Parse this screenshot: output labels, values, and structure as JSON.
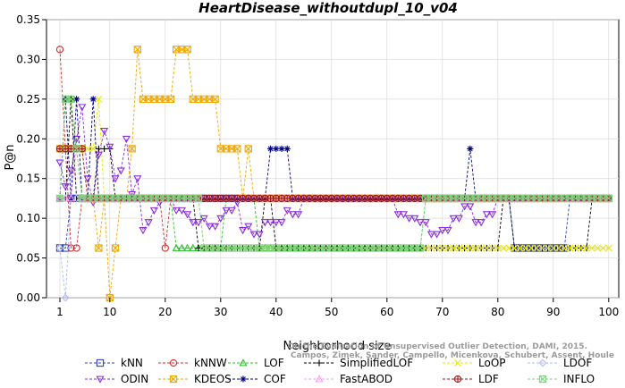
{
  "chart_data": {
    "type": "line",
    "title": "HeartDisease_withoutdupl_10_v04",
    "xlabel": "Neighborhood size",
    "ylabel": "P@n",
    "xlim": [
      1,
      100
    ],
    "ylim": [
      0,
      0.35
    ],
    "xticks": [
      1,
      10,
      20,
      30,
      40,
      50,
      60,
      70,
      80,
      90,
      100
    ],
    "yticks": [
      0.0,
      0.05,
      0.1,
      0.15,
      0.2,
      0.25,
      0.3,
      0.35
    ],
    "credit_lines": [
      "Campos, Zimek, Sander, Campello, Micenkova, Schubert, Assent, Houle",
      "On the Evaluation of Unsupervised Outlier Detection, DAMI, 2015."
    ],
    "legend_position": "bottom",
    "series": [
      {
        "name": "kNN",
        "color": "#2c3fbf",
        "marker": "square",
        "values": [
          [
            1,
            0.0625
          ],
          [
            2,
            0.0625
          ],
          [
            3,
            0.125
          ],
          [
            20,
            0.125
          ],
          [
            60,
            0.125
          ],
          [
            82,
            0.125
          ],
          [
            83,
            0.0625
          ],
          [
            92,
            0.0625
          ],
          [
            93,
            0.125
          ],
          [
            100,
            0.125
          ]
        ]
      },
      {
        "name": "kNNW",
        "color": "#d12c2c",
        "marker": "circle",
        "values": [
          [
            1,
            0.3125
          ],
          [
            2,
            0.1875
          ],
          [
            3,
            0.0625
          ],
          [
            4,
            0.0625
          ],
          [
            5,
            0.125
          ],
          [
            15,
            0.125
          ],
          [
            20,
            0.0625
          ],
          [
            21,
            0.125
          ],
          [
            40,
            0.125
          ],
          [
            41,
            0.125
          ],
          [
            60,
            0.125
          ],
          [
            100,
            0.125
          ]
        ]
      },
      {
        "name": "LOF",
        "color": "#22c422",
        "marker": "triangle",
        "values": [
          [
            1,
            0.125
          ],
          [
            2,
            0.25
          ],
          [
            3,
            0.25
          ],
          [
            4,
            0.1875
          ],
          [
            5,
            0.125
          ],
          [
            20,
            0.125
          ],
          [
            22,
            0.0625
          ],
          [
            30,
            0.0625
          ],
          [
            31,
            0.125
          ],
          [
            36,
            0.125
          ],
          [
            37,
            0.0625
          ],
          [
            66,
            0.0625
          ],
          [
            67,
            0.125
          ],
          [
            100,
            0.125
          ]
        ]
      },
      {
        "name": "SimplifiedLOF",
        "color": "#000000",
        "marker": "plus",
        "values": [
          [
            1,
            0.125
          ],
          [
            2,
            0.125
          ],
          [
            3,
            0.25
          ],
          [
            4,
            0.125
          ],
          [
            7,
            0.125
          ],
          [
            8,
            0.1875
          ],
          [
            10,
            0.1875
          ],
          [
            11,
            0.125
          ],
          [
            25,
            0.125
          ],
          [
            26,
            0.0625
          ],
          [
            37,
            0.0625
          ],
          [
            38,
            0.125
          ],
          [
            40,
            0.0625
          ],
          [
            80,
            0.0625
          ],
          [
            81,
            0.125
          ],
          [
            83,
            0.0625
          ],
          [
            96,
            0.0625
          ],
          [
            97,
            0.125
          ],
          [
            100,
            0.125
          ]
        ]
      },
      {
        "name": "LoOP",
        "color": "#e8e800",
        "marker": "x",
        "values": [
          [
            1,
            0.125
          ],
          [
            2,
            0.25
          ],
          [
            4,
            0.1875
          ],
          [
            8,
            0.25
          ],
          [
            9,
            0.125
          ],
          [
            26,
            0.125
          ],
          [
            27,
            0.0625
          ],
          [
            100,
            0.0625
          ]
        ]
      },
      {
        "name": "LDOF",
        "color": "#b0b8ff",
        "marker": "diamond",
        "values": [
          [
            1,
            0.0625
          ],
          [
            2,
            0
          ],
          [
            3,
            0.125
          ],
          [
            100,
            0.125
          ]
        ]
      },
      {
        "name": "ODIN",
        "color": "#8a2be2",
        "marker": "triangle-down",
        "values": [
          [
            1,
            0.17
          ],
          [
            2,
            0.14
          ],
          [
            3,
            0.16
          ],
          [
            4,
            0.2
          ],
          [
            5,
            0.24
          ],
          [
            6,
            0.15
          ],
          [
            7,
            0.12
          ],
          [
            8,
            0.18
          ],
          [
            9,
            0.21
          ],
          [
            10,
            0.19
          ],
          [
            11,
            0.15
          ],
          [
            12,
            0.16
          ],
          [
            13,
            0.2
          ],
          [
            14,
            0.13
          ],
          [
            15,
            0.15
          ],
          [
            16,
            0.085
          ],
          [
            17,
            0.095
          ],
          [
            18,
            0.11
          ],
          [
            19,
            0.12
          ],
          [
            20,
            0.125
          ],
          [
            22,
            0.11
          ],
          [
            24,
            0.105
          ],
          [
            25,
            0.095
          ],
          [
            27,
            0.1
          ],
          [
            28,
            0.09
          ],
          [
            30,
            0.1
          ],
          [
            31,
            0.11
          ],
          [
            33,
            0.12
          ],
          [
            34,
            0.085
          ],
          [
            35,
            0.09
          ],
          [
            36,
            0.08
          ],
          [
            38,
            0.095
          ],
          [
            40,
            0.095
          ],
          [
            42,
            0.11
          ],
          [
            43,
            0.105
          ],
          [
            45,
            0.125
          ],
          [
            60,
            0.125
          ],
          [
            62,
            0.105
          ],
          [
            64,
            0.1
          ],
          [
            66,
            0.095
          ],
          [
            68,
            0.08
          ],
          [
            70,
            0.085
          ],
          [
            72,
            0.1
          ],
          [
            74,
            0.115
          ],
          [
            76,
            0.095
          ],
          [
            78,
            0.105
          ],
          [
            80,
            0.125
          ],
          [
            100,
            0.125
          ]
        ]
      },
      {
        "name": "KDEOS",
        "color": "#f0a800",
        "marker": "square-x",
        "values": [
          [
            1,
            0.1875
          ],
          [
            5,
            0.1875
          ],
          [
            6,
            0.125
          ],
          [
            8,
            0.0625
          ],
          [
            9,
            0.125
          ],
          [
            10,
            0
          ],
          [
            11,
            0.0625
          ],
          [
            12,
            0.125
          ],
          [
            14,
            0.1875
          ],
          [
            15,
            0.3125
          ],
          [
            16,
            0.25
          ],
          [
            21,
            0.25
          ],
          [
            22,
            0.3125
          ],
          [
            24,
            0.3125
          ],
          [
            25,
            0.25
          ],
          [
            29,
            0.25
          ],
          [
            30,
            0.1875
          ],
          [
            33,
            0.1875
          ],
          [
            34,
            0.125
          ],
          [
            35,
            0.1875
          ],
          [
            36,
            0.125
          ],
          [
            100,
            0.125
          ]
        ]
      },
      {
        "name": "COF",
        "color": "#000080",
        "marker": "asterisk",
        "values": [
          [
            1,
            0.125
          ],
          [
            2,
            0.25
          ],
          [
            3,
            0.125
          ],
          [
            4,
            0.25
          ],
          [
            5,
            0.125
          ],
          [
            6,
            0.125
          ],
          [
            7,
            0.25
          ],
          [
            8,
            0.125
          ],
          [
            38,
            0.125
          ],
          [
            39,
            0.1875
          ],
          [
            42,
            0.1875
          ],
          [
            43,
            0.125
          ],
          [
            74,
            0.125
          ],
          [
            75,
            0.1875
          ],
          [
            76,
            0.125
          ],
          [
            100,
            0.125
          ]
        ]
      },
      {
        "name": "FastABOD",
        "color": "#ff9cf0",
        "marker": "triangle",
        "values": [
          [
            1,
            0.125
          ],
          [
            3,
            0.125
          ],
          [
            4,
            0.1875
          ],
          [
            5,
            0.125
          ],
          [
            100,
            0.125
          ]
        ]
      },
      {
        "name": "LDF",
        "color": "#a01a1a",
        "marker": "circle-plus",
        "values": [
          [
            1,
            0.1875
          ],
          [
            4,
            0.1875
          ],
          [
            6,
            0.125
          ],
          [
            100,
            0.125
          ]
        ]
      },
      {
        "name": "INFLO",
        "color": "#7fd37f",
        "marker": "square-x",
        "values": [
          [
            1,
            0.125
          ],
          [
            2,
            0.25
          ],
          [
            4,
            0.1875
          ],
          [
            5,
            0.125
          ],
          [
            26,
            0.125
          ],
          [
            27,
            0.0625
          ],
          [
            66,
            0.0625
          ],
          [
            67,
            0.125
          ],
          [
            100,
            0.125
          ]
        ]
      }
    ]
  }
}
